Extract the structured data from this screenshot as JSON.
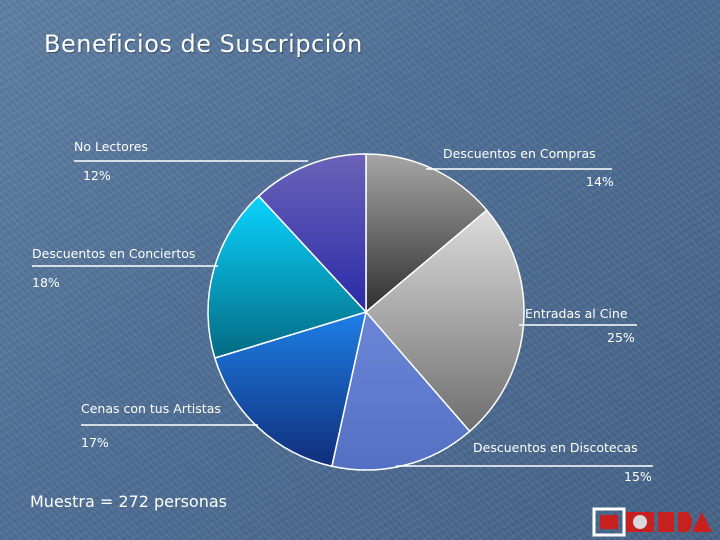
{
  "slide": {
    "title": "Beneficios de Suscripción",
    "sample_note": "Muestra = 272 personas"
  },
  "chart_data": {
    "type": "pie",
    "title": "Beneficios de Suscripción",
    "start_angle_deg": 0,
    "direction": "clockwise",
    "slices": [
      {
        "label": "Descuentos en Compras",
        "pct_label": "14%",
        "value": 14,
        "color_top": "#a6a6a6",
        "color_bottom": "#2f2f2f"
      },
      {
        "label": "Entradas al Cine",
        "pct_label": "25%",
        "value": 25,
        "color_top": "#dcdcdc",
        "color_bottom": "#6e6e6e"
      },
      {
        "label": "Descuentos en Discotecas",
        "pct_label": "15%",
        "value": 15,
        "color_top": "#6b86d6",
        "color_bottom": "#5470c4"
      },
      {
        "label": "Cenas con tus Artistas",
        "pct_label": "17%",
        "value": 17,
        "color_top": "#1e7fe6",
        "color_bottom": "#102e7a"
      },
      {
        "label": "Descuentos en Conciertos",
        "pct_label": "18%",
        "value": 18,
        "color_top": "#0ad4ff",
        "color_bottom": "#046a82"
      },
      {
        "label": "No Lectores",
        "pct_label": "12%",
        "value": 12,
        "color_top": "#6b63b8",
        "color_bottom": "#2a2aa8"
      }
    ]
  },
  "logo": {
    "text": "LONDA",
    "icon": "londa-logo-icon"
  }
}
